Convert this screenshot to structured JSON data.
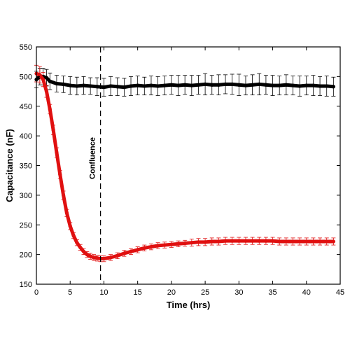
{
  "chart_data": {
    "type": "line",
    "title": "",
    "xlabel": "Time (hrs)",
    "ylabel": "Capacitance (nF)",
    "xlim": [
      0,
      45
    ],
    "ylim": [
      150,
      550
    ],
    "xticks": [
      0,
      5,
      10,
      15,
      20,
      25,
      30,
      35,
      40,
      45
    ],
    "yticks": [
      150,
      200,
      250,
      300,
      350,
      400,
      450,
      500,
      550
    ],
    "grid": false,
    "legend": "none",
    "annotation": {
      "text": "Confluence",
      "x": 9.5,
      "style": "dashed vertical line"
    },
    "series": [
      {
        "color": "#000000",
        "x": [
          0,
          0.5,
          1,
          1.5,
          2,
          3,
          4,
          5,
          6,
          7,
          8,
          9,
          10,
          11,
          12,
          13,
          14,
          15,
          16,
          17,
          18,
          19,
          20,
          21,
          22,
          23,
          24,
          25,
          26,
          27,
          28,
          29,
          30,
          31,
          32,
          33,
          34,
          35,
          36,
          37,
          38,
          39,
          40,
          41,
          42,
          43,
          44
        ],
        "y": [
          495,
          500,
          500,
          498,
          492,
          488,
          487,
          485,
          484,
          485,
          484,
          483,
          482,
          484,
          483,
          482,
          484,
          485,
          484,
          485,
          484,
          485,
          486,
          485,
          486,
          485,
          486,
          487,
          486,
          486,
          487,
          487,
          486,
          485,
          486,
          487,
          486,
          485,
          485,
          486,
          485,
          484,
          485,
          485,
          484,
          484,
          483
        ],
        "error": [
          14,
          14,
          14,
          14,
          14,
          14,
          14,
          15,
          15,
          15,
          14,
          15,
          15,
          16,
          15,
          15,
          16,
          16,
          15,
          16,
          16,
          16,
          16,
          17,
          16,
          17,
          16,
          18,
          16,
          17,
          16,
          17,
          18,
          16,
          17,
          18,
          16,
          17,
          16,
          17,
          16,
          17,
          16,
          17,
          16,
          17,
          16
        ]
      },
      {
        "color": "#e01010",
        "x": [
          0,
          0.5,
          1,
          1.5,
          2,
          2.5,
          3,
          3.5,
          4,
          4.5,
          5,
          5.5,
          6,
          6.5,
          7,
          7.5,
          8,
          8.5,
          9,
          9.5,
          10,
          11,
          12,
          13,
          14,
          15,
          16,
          17,
          18,
          19,
          20,
          21,
          22,
          23,
          24,
          25,
          26,
          27,
          28,
          29,
          30,
          31,
          32,
          33,
          34,
          35,
          36,
          37,
          38,
          39,
          40,
          41,
          42,
          43,
          44
        ],
        "y": [
          505,
          503,
          495,
          475,
          445,
          410,
          372,
          335,
          300,
          270,
          248,
          232,
          220,
          212,
          205,
          200,
          197,
          195,
          194,
          193,
          193,
          195,
          198,
          202,
          205,
          208,
          211,
          213,
          215,
          216,
          217,
          218,
          219,
          220,
          221,
          221,
          222,
          222,
          223,
          223,
          223,
          223,
          223,
          223,
          223,
          223,
          222,
          222,
          222,
          222,
          222,
          222,
          222,
          222,
          222
        ],
        "error": [
          14,
          14,
          12,
          10,
          8,
          8,
          8,
          7,
          7,
          6,
          6,
          5,
          5,
          5,
          5,
          5,
          5,
          5,
          5,
          5,
          5,
          5,
          5,
          5,
          5,
          5,
          5,
          5,
          5,
          5,
          5,
          5,
          5,
          6,
          6,
          6,
          6,
          6,
          6,
          6,
          6,
          6,
          6,
          6,
          6,
          6,
          6,
          6,
          6,
          6,
          6,
          6,
          6,
          6,
          6
        ]
      }
    ]
  }
}
